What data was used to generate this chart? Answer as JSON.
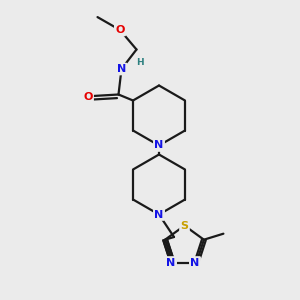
{
  "bg_color": "#ebebeb",
  "bond_color": "#1a1a1a",
  "atom_colors": {
    "N": "#1414e6",
    "O": "#e60000",
    "S": "#c8a000",
    "H": "#2d8080",
    "C": "#1a1a1a"
  }
}
